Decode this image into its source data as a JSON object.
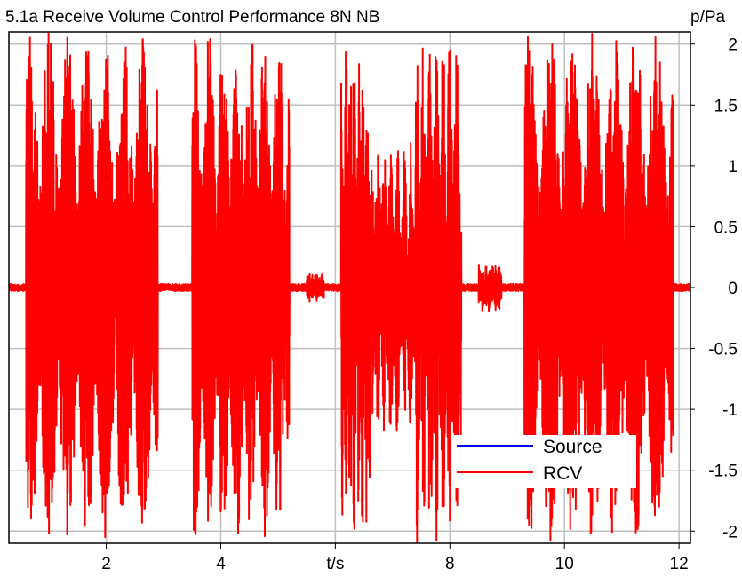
{
  "chart_data": {
    "type": "line",
    "title": "5.1a Receive Volume Control Performance 8N NB",
    "xlabel": "t/s",
    "ylabel": "p/Pa",
    "xlim": [
      0.3,
      12.2
    ],
    "ylim": [
      -2.1,
      2.1
    ],
    "x_ticks": [
      2,
      4,
      6,
      8,
      10,
      12
    ],
    "x_tick_labels": [
      "2",
      "4",
      "t/s",
      "8",
      "10",
      "12"
    ],
    "y_ticks": [
      2,
      1.5,
      1,
      0.5,
      0,
      -0.5,
      -1,
      -1.5,
      -2
    ],
    "y_tick_labels": [
      "2",
      "1.5",
      "1",
      "0.5",
      "0",
      "-0.5",
      "-1",
      "-1.5",
      "-2"
    ],
    "grid": true,
    "y_axis_side": "right",
    "legend_position": "bottom-right",
    "series": [
      {
        "name": "Source",
        "color": "#0000ff",
        "bursts": [
          {
            "start": 6.5,
            "end": 7.4,
            "amplitude": 0.15
          }
        ]
      },
      {
        "name": "RCV",
        "color": "#ff0000",
        "noise_amplitude": 0.03,
        "bursts": [
          {
            "start": 0.6,
            "end": 2.9,
            "amplitude": 2.1
          },
          {
            "start": 3.5,
            "end": 5.2,
            "amplitude": 2.1
          },
          {
            "start": 5.5,
            "end": 5.8,
            "amplitude": 0.12
          },
          {
            "start": 6.1,
            "end": 6.6,
            "amplitude": 2.1
          },
          {
            "start": 6.6,
            "end": 7.4,
            "amplitude": 1.2
          },
          {
            "start": 7.4,
            "end": 8.2,
            "amplitude": 2.1
          },
          {
            "start": 8.5,
            "end": 8.9,
            "amplitude": 0.2
          },
          {
            "start": 9.3,
            "end": 11.9,
            "amplitude": 2.1
          }
        ]
      }
    ]
  }
}
